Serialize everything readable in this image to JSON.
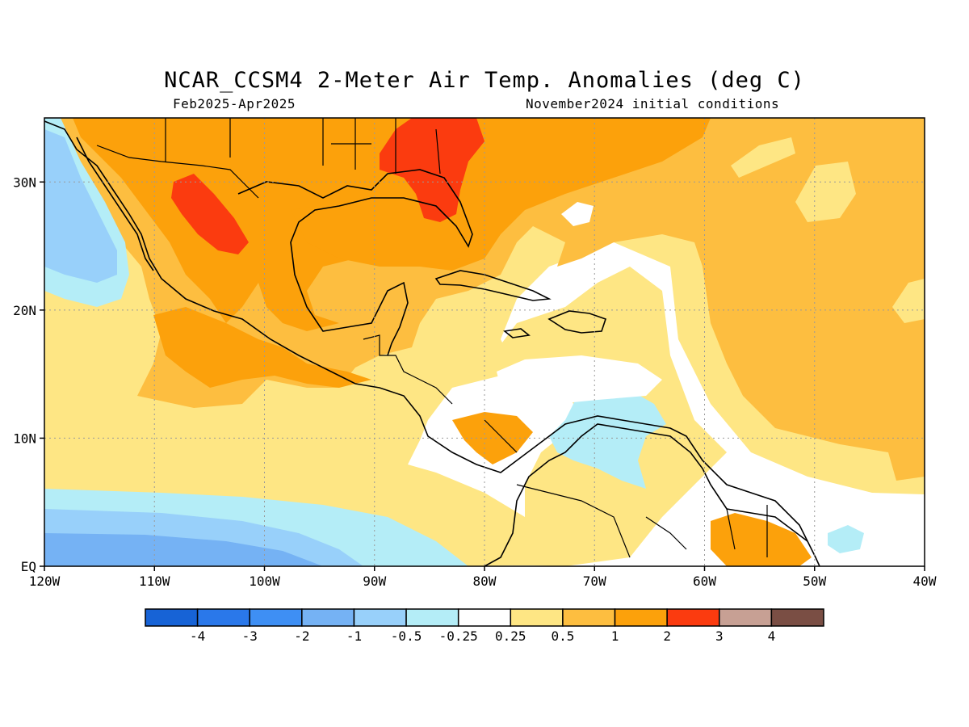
{
  "header": {
    "title": "NCAR_CCSM4 2-Meter Air Temp. Anomalies (deg C)",
    "period": "Feb2025-Apr2025",
    "initial_conditions": "November2024 initial conditions"
  },
  "map": {
    "lon_range": [
      -120,
      -40
    ],
    "lat_range": [
      0,
      35
    ],
    "lon_ticks": [
      {
        "value": -120,
        "label": "120W"
      },
      {
        "value": -110,
        "label": "110W"
      },
      {
        "value": -100,
        "label": "100W"
      },
      {
        "value": -90,
        "label": "90W"
      },
      {
        "value": -80,
        "label": "80W"
      },
      {
        "value": -70,
        "label": "70W"
      },
      {
        "value": -60,
        "label": "60W"
      },
      {
        "value": -50,
        "label": "50W"
      },
      {
        "value": -40,
        "label": "40W"
      }
    ],
    "lat_ticks": [
      {
        "value": 0,
        "label": "EQ"
      },
      {
        "value": 10,
        "label": "10N"
      },
      {
        "value": 20,
        "label": "20N"
      },
      {
        "value": 30,
        "label": "30N"
      }
    ],
    "grid": "dotted"
  },
  "colorbar": {
    "colors": [
      "#1763d6",
      "#2a78ea",
      "#3e8ff4",
      "#75b2f4",
      "#98d0fa",
      "#b4edf7",
      "#ffffff",
      "#fee684",
      "#fdbe40",
      "#fca10b",
      "#fb3b0f",
      "#c7a094",
      "#7a4e44"
    ],
    "labels": [
      "-4",
      "-3",
      "-2",
      "-1",
      "-0.5",
      "-0.25",
      "0.25",
      "0.5",
      "1",
      "2",
      "3",
      "4"
    ]
  }
}
